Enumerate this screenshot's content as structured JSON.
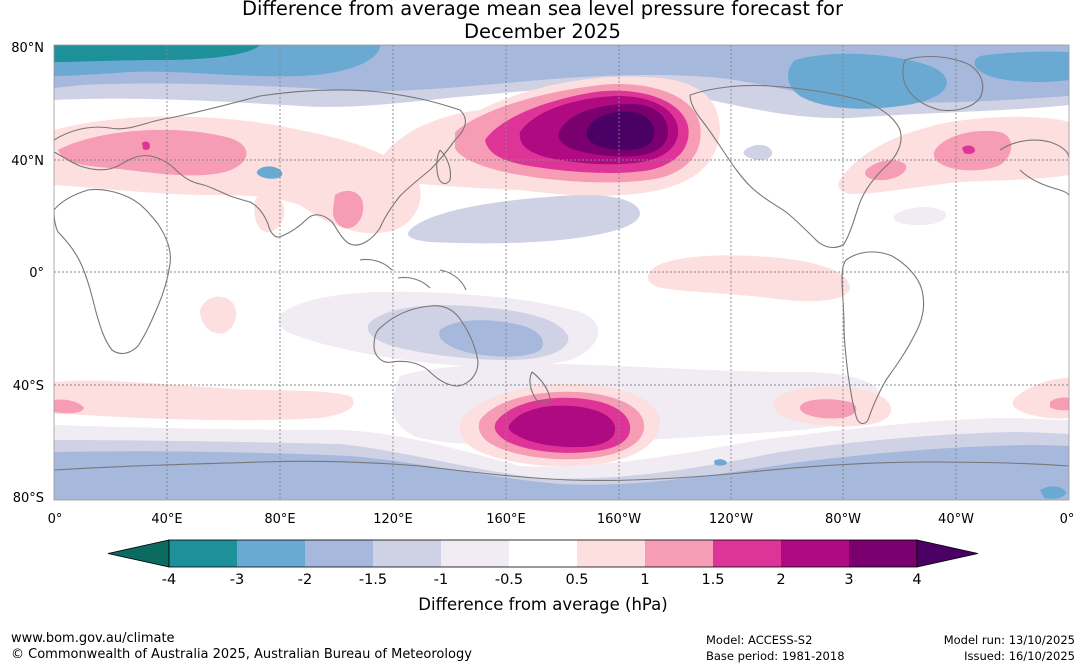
{
  "title": {
    "line1": "Difference from average mean sea level pressure forecast for",
    "line2": "December 2025"
  },
  "map": {
    "lat_labels": [
      "80°N",
      "40°N",
      "0°",
      "40°S",
      "80°S"
    ],
    "lon_labels": [
      "0°",
      "40°E",
      "80°E",
      "120°E",
      "160°E",
      "160°W",
      "120°W",
      "80°W",
      "40°W",
      "0°"
    ]
  },
  "colorbar": {
    "title": "Difference from average (hPa)",
    "tick_labels": [
      "-4",
      "-3",
      "-2",
      "-1.5",
      "-1",
      "-0.5",
      "0.5",
      "1",
      "1.5",
      "2",
      "3",
      "4"
    ],
    "colors": [
      "#0b6b61",
      "#1e9099",
      "#6aaad2",
      "#a6b8dc",
      "#cfd1e5",
      "#f1ebf3",
      "#ffffff",
      "#fedfe0",
      "#f69cb5",
      "#df3497",
      "#b00a82",
      "#7a0070",
      "#4a0064"
    ]
  },
  "footer": {
    "website": "www.bom.gov.au/climate",
    "copyright": "© Commonwealth of Australia 2025, Australian Bureau of Meteorology",
    "model": "Model: ACCESS-S2",
    "base_period": "Base period: 1981-2018",
    "model_run": "Model run: 13/10/2025",
    "issued": "Issued: 16/10/2025"
  }
}
